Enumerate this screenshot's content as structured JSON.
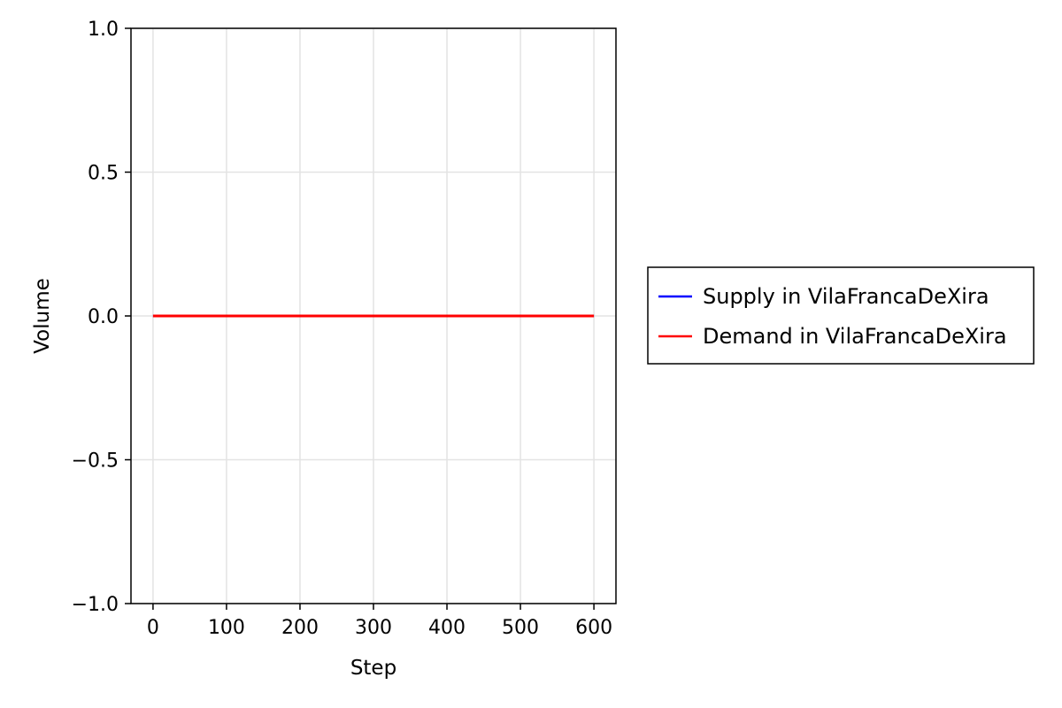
{
  "chart_data": {
    "type": "line",
    "title": "",
    "xlabel": "Step",
    "ylabel": "Volume",
    "xlim": [
      -30,
      630
    ],
    "ylim": [
      -1.0,
      1.0
    ],
    "xticks": [
      0,
      100,
      200,
      300,
      400,
      500,
      600
    ],
    "xtick_labels": [
      "0",
      "100",
      "200",
      "300",
      "400",
      "500",
      "600"
    ],
    "yticks": [
      -1.0,
      -0.5,
      0.0,
      0.5,
      1.0
    ],
    "ytick_labels": [
      "−1.0",
      "−0.5",
      "0.0",
      "0.5",
      "1.0"
    ],
    "grid": true,
    "legend_position": "right",
    "series": [
      {
        "name": "Supply in VilaFrancaDeXira",
        "color": "#0000ff",
        "x": [
          0,
          600
        ],
        "y": [
          0,
          0
        ]
      },
      {
        "name": "Demand in VilaFrancaDeXira",
        "color": "#ff0000",
        "x": [
          0,
          600
        ],
        "y": [
          0,
          0
        ]
      }
    ]
  }
}
